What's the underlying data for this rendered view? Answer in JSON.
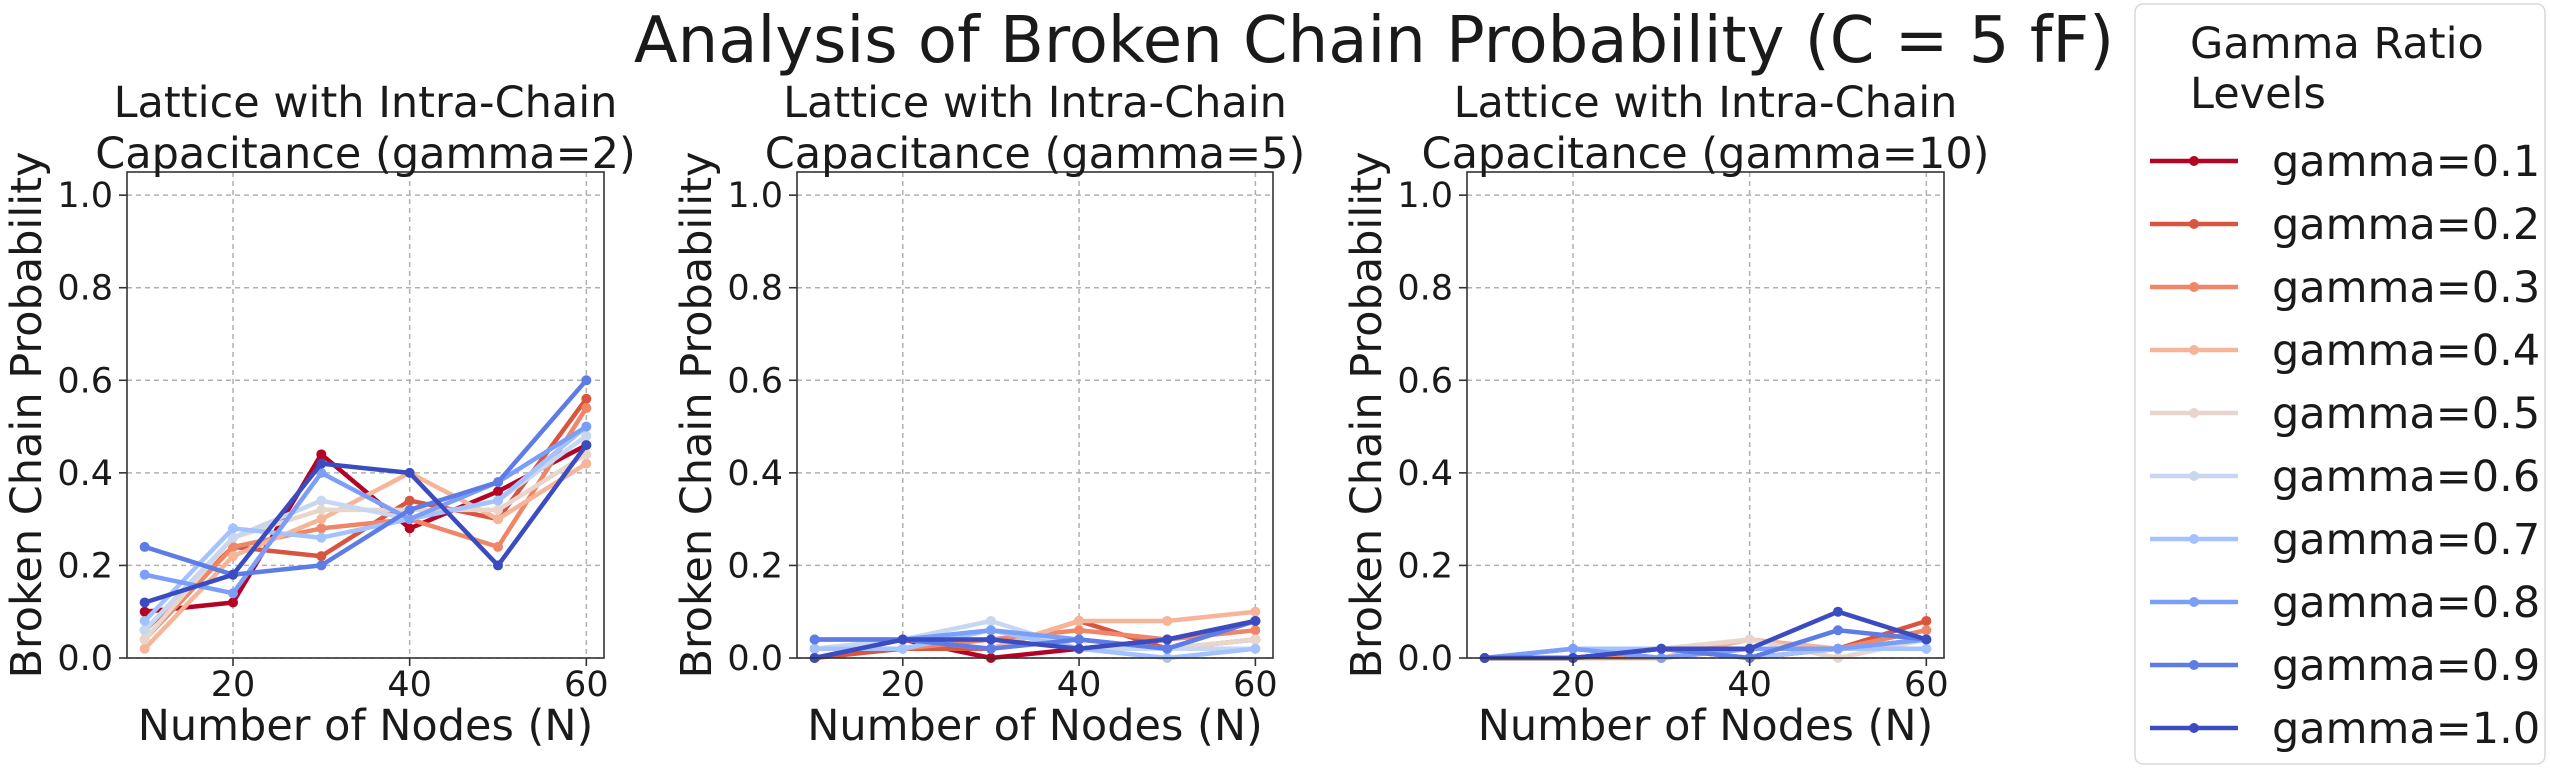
{
  "suptitle": "Analysis of Broken Chain Probability (C = 5 fF)",
  "legend": {
    "title": [
      "Gamma Ratio",
      "Levels"
    ],
    "placement": "right-outside",
    "entries": [
      {
        "label": "gamma=0.1",
        "color": "#b40426"
      },
      {
        "label": "gamma=0.2",
        "color": "#d8553f"
      },
      {
        "label": "gamma=0.3",
        "color": "#ee8667"
      },
      {
        "label": "gamma=0.4",
        "color": "#f6b598"
      },
      {
        "label": "gamma=0.5",
        "color": "#e8d6cc"
      },
      {
        "label": "gamma=0.6",
        "color": "#c7d7f0"
      },
      {
        "label": "gamma=0.7",
        "color": "#a4c2fe"
      },
      {
        "label": "gamma=0.8",
        "color": "#7b9ff9"
      },
      {
        "label": "gamma=0.9",
        "color": "#5d7ce6"
      },
      {
        "label": "gamma=1.0",
        "color": "#3b4cc0"
      }
    ]
  },
  "chart_data": [
    {
      "type": "line",
      "title": [
        "Lattice with Intra-Chain",
        "Capacitance (gamma=2)"
      ],
      "xlabel": "Number of Nodes (N)",
      "ylabel": "Broken Chain Probability",
      "xlim": [
        8,
        62
      ],
      "ylim": [
        0,
        1.05
      ],
      "xticks": [
        20,
        40,
        60
      ],
      "yticks": [
        0.0,
        0.2,
        0.4,
        0.6,
        0.8,
        1.0
      ],
      "grid": true,
      "x": [
        10,
        20,
        30,
        40,
        50,
        60
      ],
      "series": [
        {
          "name": "gamma=0.1",
          "values": [
            0.1,
            0.12,
            0.44,
            0.28,
            0.36,
            0.46
          ]
        },
        {
          "name": "gamma=0.2",
          "values": [
            0.06,
            0.24,
            0.22,
            0.34,
            0.3,
            0.56
          ]
        },
        {
          "name": "gamma=0.3",
          "values": [
            0.04,
            0.24,
            0.28,
            0.3,
            0.24,
            0.54
          ]
        },
        {
          "name": "gamma=0.4",
          "values": [
            0.02,
            0.22,
            0.3,
            0.4,
            0.3,
            0.42
          ]
        },
        {
          "name": "gamma=0.5",
          "values": [
            0.04,
            0.26,
            0.32,
            0.32,
            0.32,
            0.44
          ]
        },
        {
          "name": "gamma=0.6",
          "values": [
            0.06,
            0.26,
            0.34,
            0.3,
            0.34,
            0.48
          ]
        },
        {
          "name": "gamma=0.7",
          "values": [
            0.08,
            0.28,
            0.26,
            0.3,
            0.34,
            0.5
          ]
        },
        {
          "name": "gamma=0.8",
          "values": [
            0.18,
            0.14,
            0.4,
            0.3,
            0.38,
            0.5
          ]
        },
        {
          "name": "gamma=0.9",
          "values": [
            0.24,
            0.18,
            0.2,
            0.32,
            0.38,
            0.6
          ]
        },
        {
          "name": "gamma=1.0",
          "values": [
            0.12,
            0.18,
            0.42,
            0.4,
            0.2,
            0.46
          ]
        }
      ]
    },
    {
      "type": "line",
      "title": [
        "Lattice with Intra-Chain",
        "Capacitance (gamma=5)"
      ],
      "xlabel": "Number of Nodes (N)",
      "ylabel": "Broken Chain Probability",
      "xlim": [
        8,
        62
      ],
      "ylim": [
        0,
        1.05
      ],
      "xticks": [
        20,
        40,
        60
      ],
      "yticks": [
        0.0,
        0.2,
        0.4,
        0.6,
        0.8,
        1.0
      ],
      "grid": true,
      "x": [
        10,
        20,
        30,
        40,
        50,
        60
      ],
      "series": [
        {
          "name": "gamma=0.1",
          "values": [
            0.0,
            0.04,
            0.0,
            0.02,
            0.04,
            0.08
          ]
        },
        {
          "name": "gamma=0.2",
          "values": [
            0.0,
            0.02,
            0.02,
            0.08,
            0.02,
            0.04
          ]
        },
        {
          "name": "gamma=0.3",
          "values": [
            0.02,
            0.02,
            0.04,
            0.06,
            0.04,
            0.06
          ]
        },
        {
          "name": "gamma=0.4",
          "values": [
            0.02,
            0.04,
            0.02,
            0.08,
            0.08,
            0.1
          ]
        },
        {
          "name": "gamma=0.5",
          "values": [
            0.02,
            0.02,
            0.06,
            0.04,
            0.02,
            0.04
          ]
        },
        {
          "name": "gamma=0.6",
          "values": [
            0.02,
            0.04,
            0.08,
            0.02,
            0.02,
            0.02
          ]
        },
        {
          "name": "gamma=0.7",
          "values": [
            0.02,
            0.02,
            0.06,
            0.02,
            0.0,
            0.02
          ]
        },
        {
          "name": "gamma=0.8",
          "values": [
            0.04,
            0.04,
            0.06,
            0.04,
            0.02,
            0.08
          ]
        },
        {
          "name": "gamma=0.9",
          "values": [
            0.04,
            0.04,
            0.02,
            0.04,
            0.02,
            0.08
          ]
        },
        {
          "name": "gamma=1.0",
          "values": [
            0.0,
            0.04,
            0.04,
            0.02,
            0.04,
            0.08
          ]
        }
      ]
    },
    {
      "type": "line",
      "title": [
        "Lattice with Intra-Chain",
        "Capacitance (gamma=10)"
      ],
      "xlabel": "Number of Nodes (N)",
      "ylabel": "Broken Chain Probability",
      "xlim": [
        8,
        62
      ],
      "ylim": [
        0,
        1.05
      ],
      "xticks": [
        20,
        40,
        60
      ],
      "yticks": [
        0.0,
        0.2,
        0.4,
        0.6,
        0.8,
        1.0
      ],
      "grid": true,
      "x": [
        10,
        20,
        30,
        40,
        50,
        60
      ],
      "series": [
        {
          "name": "gamma=0.1",
          "values": [
            0.0,
            0.0,
            0.02,
            0.0,
            0.02,
            0.04
          ]
        },
        {
          "name": "gamma=0.2",
          "values": [
            0.0,
            0.0,
            0.02,
            0.02,
            0.02,
            0.08
          ]
        },
        {
          "name": "gamma=0.3",
          "values": [
            0.0,
            0.0,
            0.0,
            0.02,
            0.02,
            0.06
          ]
        },
        {
          "name": "gamma=0.4",
          "values": [
            0.0,
            0.02,
            0.0,
            0.04,
            0.02,
            0.04
          ]
        },
        {
          "name": "gamma=0.5",
          "values": [
            0.0,
            0.02,
            0.02,
            0.04,
            0.0,
            0.04
          ]
        },
        {
          "name": "gamma=0.6",
          "values": [
            0.0,
            0.02,
            0.0,
            0.02,
            0.02,
            0.02
          ]
        },
        {
          "name": "gamma=0.7",
          "values": [
            0.0,
            0.02,
            0.02,
            0.0,
            0.02,
            0.02
          ]
        },
        {
          "name": "gamma=0.8",
          "values": [
            0.0,
            0.02,
            0.0,
            0.02,
            0.02,
            0.04
          ]
        },
        {
          "name": "gamma=0.9",
          "values": [
            0.0,
            0.0,
            0.02,
            0.0,
            0.06,
            0.04
          ]
        },
        {
          "name": "gamma=1.0",
          "values": [
            0.0,
            0.0,
            0.02,
            0.02,
            0.1,
            0.04
          ]
        }
      ]
    }
  ]
}
